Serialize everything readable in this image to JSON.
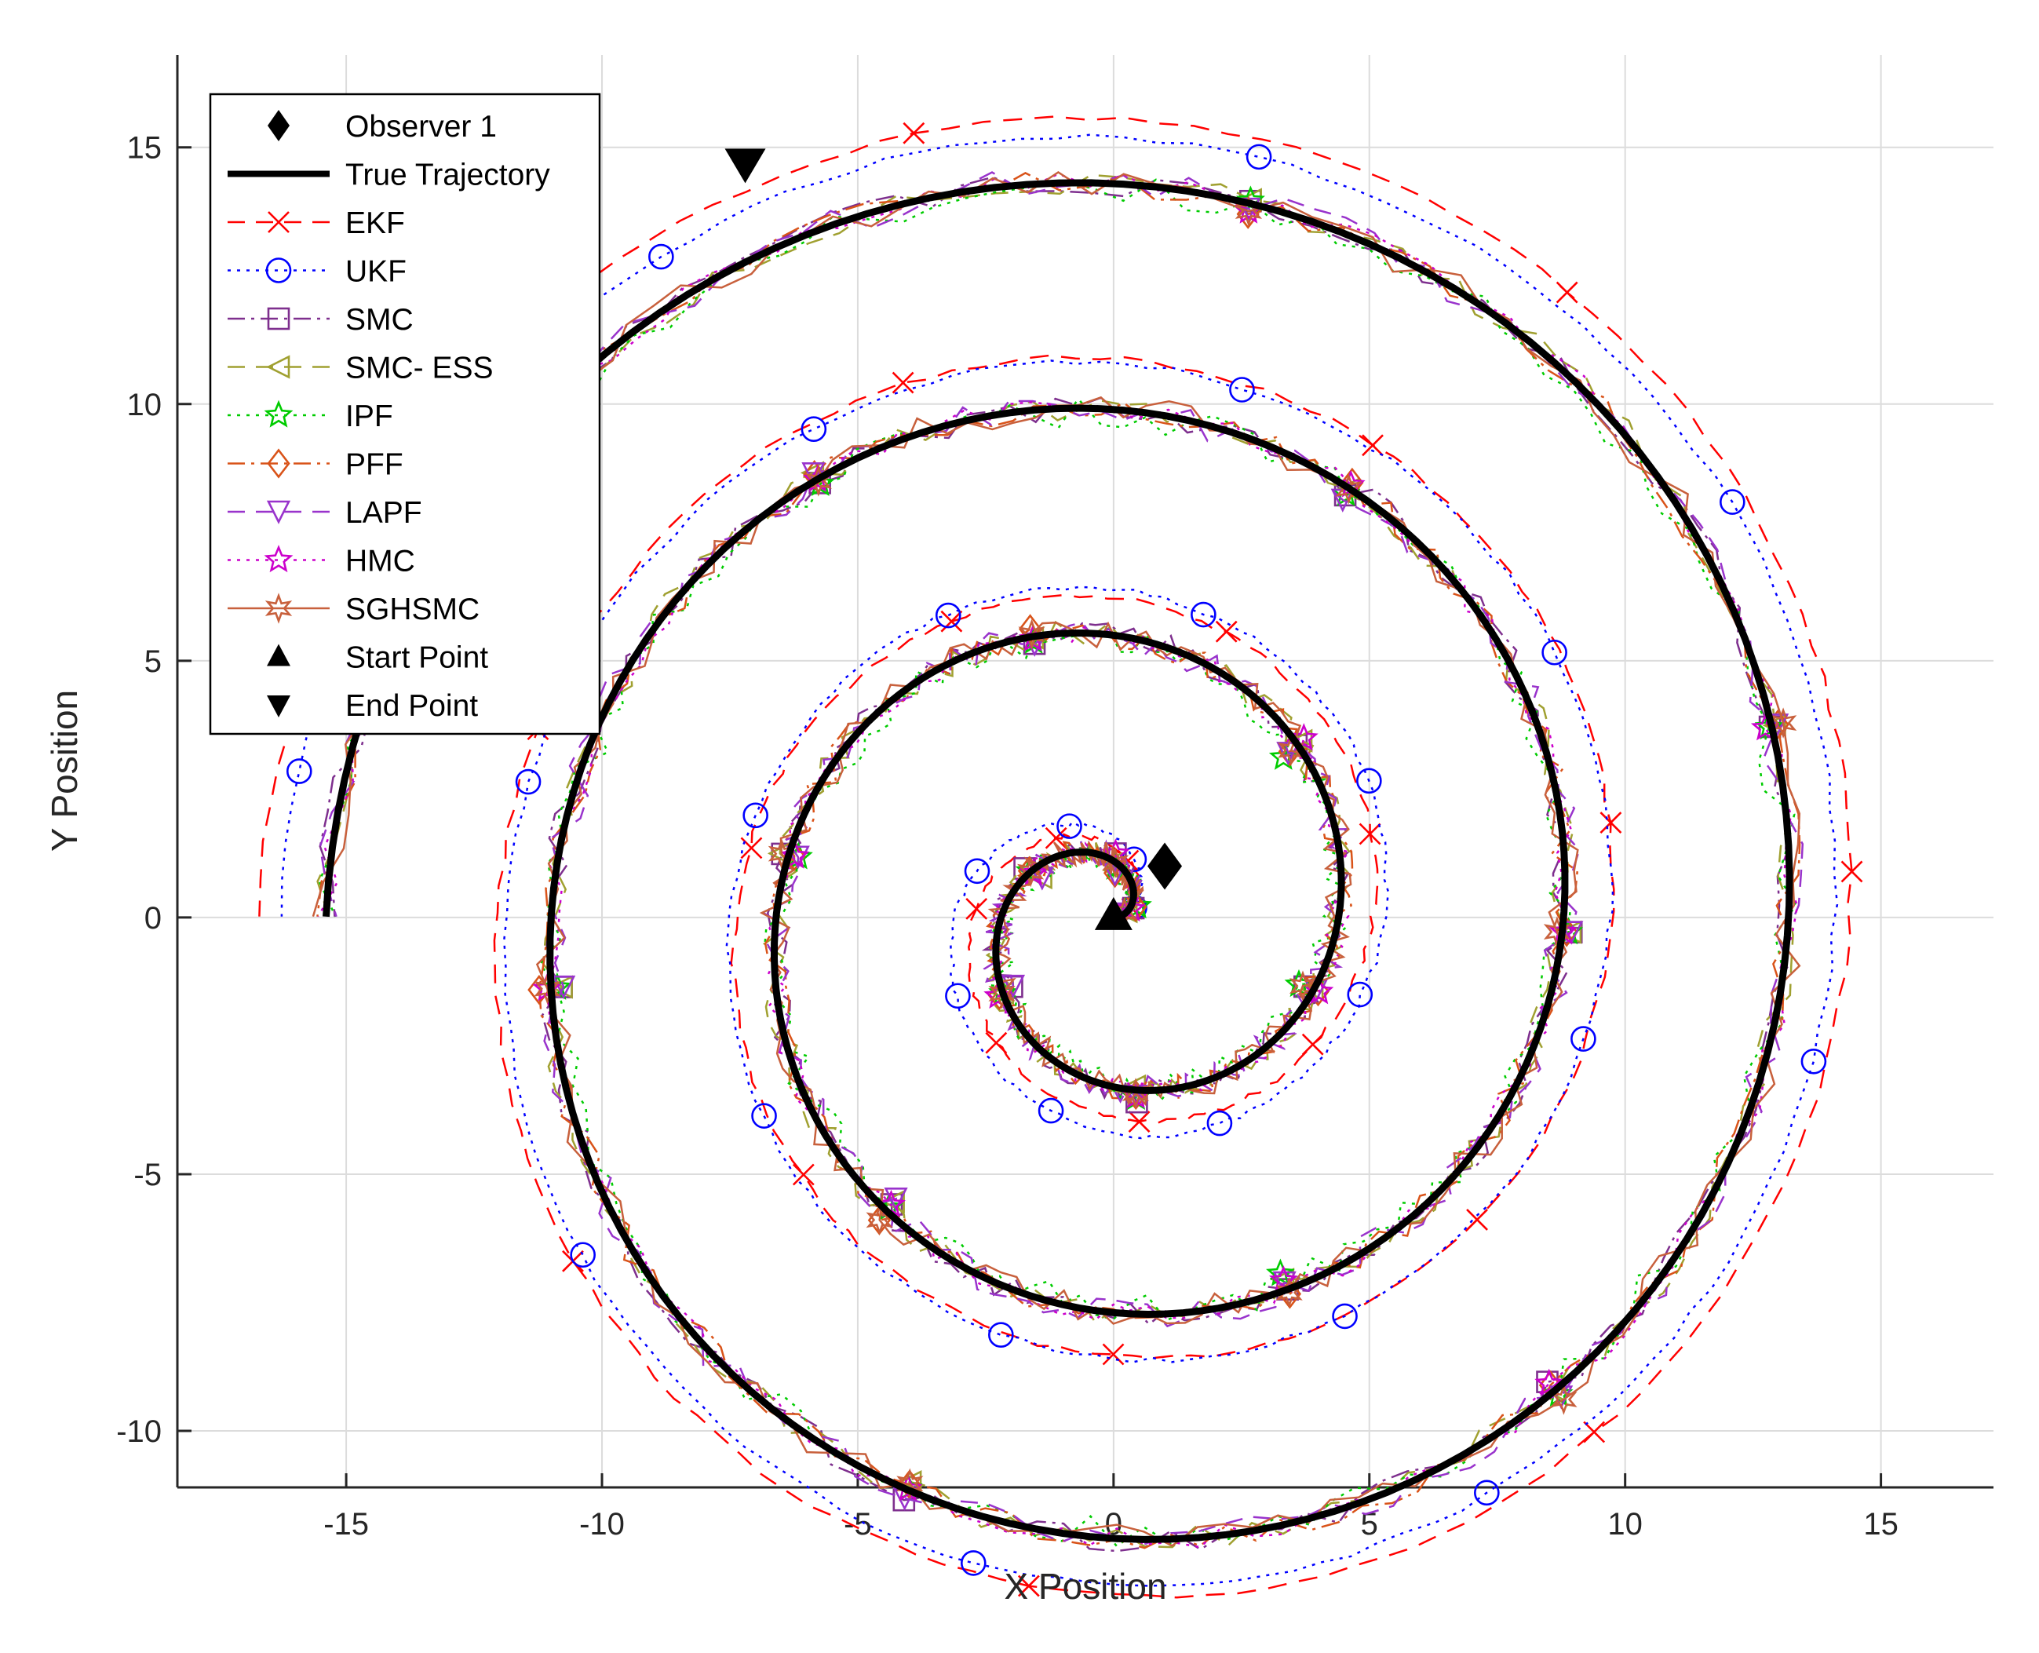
{
  "chart_data": {
    "type": "scatter",
    "title": "",
    "xlabel": "X Position",
    "ylabel": "Y Position",
    "xlim": [
      -18.3,
      17.2
    ],
    "ylim": [
      -11.1,
      16.8
    ],
    "xticks": [
      -15,
      -10,
      -5,
      0,
      5,
      10,
      15
    ],
    "yticks": [
      -10,
      -5,
      0,
      5,
      10,
      15
    ],
    "xtick_labels": [
      "-15",
      "-10",
      "-5",
      "0",
      "5",
      "10",
      "15"
    ],
    "ytick_labels": [
      "-10",
      "-5",
      "0",
      "5",
      "10",
      "15"
    ],
    "grid": true,
    "legend_position": "top-left",
    "spiral_model": {
      "description": "Archimedean spiral r = 0.7*theta, theta from 0 to 7*pi (approximate true trajectory)",
      "a": 0.7,
      "theta_end": 21.99
    },
    "legend": [
      {
        "label": "Observer 1",
        "color": "#000000",
        "line": "none",
        "marker": "diamond"
      },
      {
        "label": "True Trajectory",
        "color": "#000000",
        "line": "solid-thick",
        "marker": "none"
      },
      {
        "label": "EKF",
        "color": "#ff0000",
        "line": "dashed",
        "marker": "x"
      },
      {
        "label": "UKF",
        "color": "#0000ff",
        "line": "dotted",
        "marker": "circle"
      },
      {
        "label": "SMC",
        "color": "#7e2f8e",
        "line": "dashdot",
        "marker": "square"
      },
      {
        "label": "SMC- ESS",
        "color": "#a0a030",
        "line": "dashed",
        "marker": "triangle-left"
      },
      {
        "label": "IPF",
        "color": "#00cc00",
        "line": "dotted",
        "marker": "pentagram"
      },
      {
        "label": "PFF",
        "color": "#d95319",
        "line": "dashdot",
        "marker": "diamond"
      },
      {
        "label": "LAPF",
        "color": "#9933cc",
        "line": "dashed",
        "marker": "triangle-down"
      },
      {
        "label": "HMC",
        "color": "#cc00cc",
        "line": "dotted",
        "marker": "pentagram"
      },
      {
        "label": "SGHSMC",
        "color": "#c8603c",
        "line": "solid",
        "marker": "hexagram"
      },
      {
        "label": "Start Point",
        "color": "#000000",
        "line": "none",
        "marker": "triangle-up"
      },
      {
        "label": "End Point",
        "color": "#000000",
        "line": "none",
        "marker": "triangle-down-filled"
      }
    ],
    "points": {
      "observer": {
        "x": 1.0,
        "y": 1.0
      },
      "start": {
        "x": 0.0,
        "y": 0.0
      },
      "end": {
        "x": -7.2,
        "y": 14.7
      }
    },
    "series": [
      {
        "name": "EKF",
        "color": "#ff0000",
        "dash": "24,16",
        "width": 2.5,
        "marker": "x",
        "marker_every": 20,
        "offset_scale": 1.06,
        "offset_add": 0.4,
        "noise": 0.05
      },
      {
        "name": "UKF",
        "color": "#0000ff",
        "dash": "4,8",
        "width": 2.5,
        "marker": "circle",
        "marker_every": 18,
        "offset_scale": 1.0,
        "offset_add": 0.9,
        "noise": 0.05
      },
      {
        "name": "SMC",
        "color": "#7e2f8e",
        "dash": "24,8,4,8",
        "width": 2.5,
        "marker": "square",
        "marker_every": 25,
        "offset_scale": 1.0,
        "offset_add": 0.0,
        "noise": 0.25
      },
      {
        "name": "SMC- ESS",
        "color": "#a0a030",
        "dash": "22,14",
        "width": 2.5,
        "marker": "triangle-left",
        "marker_every": 25,
        "offset_scale": 1.0,
        "offset_add": 0.0,
        "noise": 0.25
      },
      {
        "name": "IPF",
        "color": "#00cc00",
        "dash": "4,8",
        "width": 2.5,
        "marker": "pentagram",
        "marker_every": 25,
        "offset_scale": 1.0,
        "offset_add": -0.1,
        "noise": 0.3
      },
      {
        "name": "PFF",
        "color": "#d95319",
        "dash": "24,8,4,8",
        "width": 2.5,
        "marker": "diamond",
        "marker_every": 25,
        "offset_scale": 1.0,
        "offset_add": 0.0,
        "noise": 0.25
      },
      {
        "name": "LAPF",
        "color": "#9933cc",
        "dash": "22,14",
        "width": 2.5,
        "marker": "triangle-down",
        "marker_every": 25,
        "offset_scale": 1.0,
        "offset_add": 0.0,
        "noise": 0.3
      },
      {
        "name": "HMC",
        "color": "#cc00cc",
        "dash": "4,8",
        "width": 2.5,
        "marker": "pentagram",
        "marker_every": 25,
        "offset_scale": 1.0,
        "offset_add": 0.0,
        "noise": 0.2
      },
      {
        "name": "SGHSMC",
        "color": "#c8603c",
        "dash": "",
        "width": 2.5,
        "marker": "hexagram",
        "marker_every": 25,
        "offset_scale": 1.0,
        "offset_add": 0.0,
        "noise": 0.3
      }
    ]
  }
}
